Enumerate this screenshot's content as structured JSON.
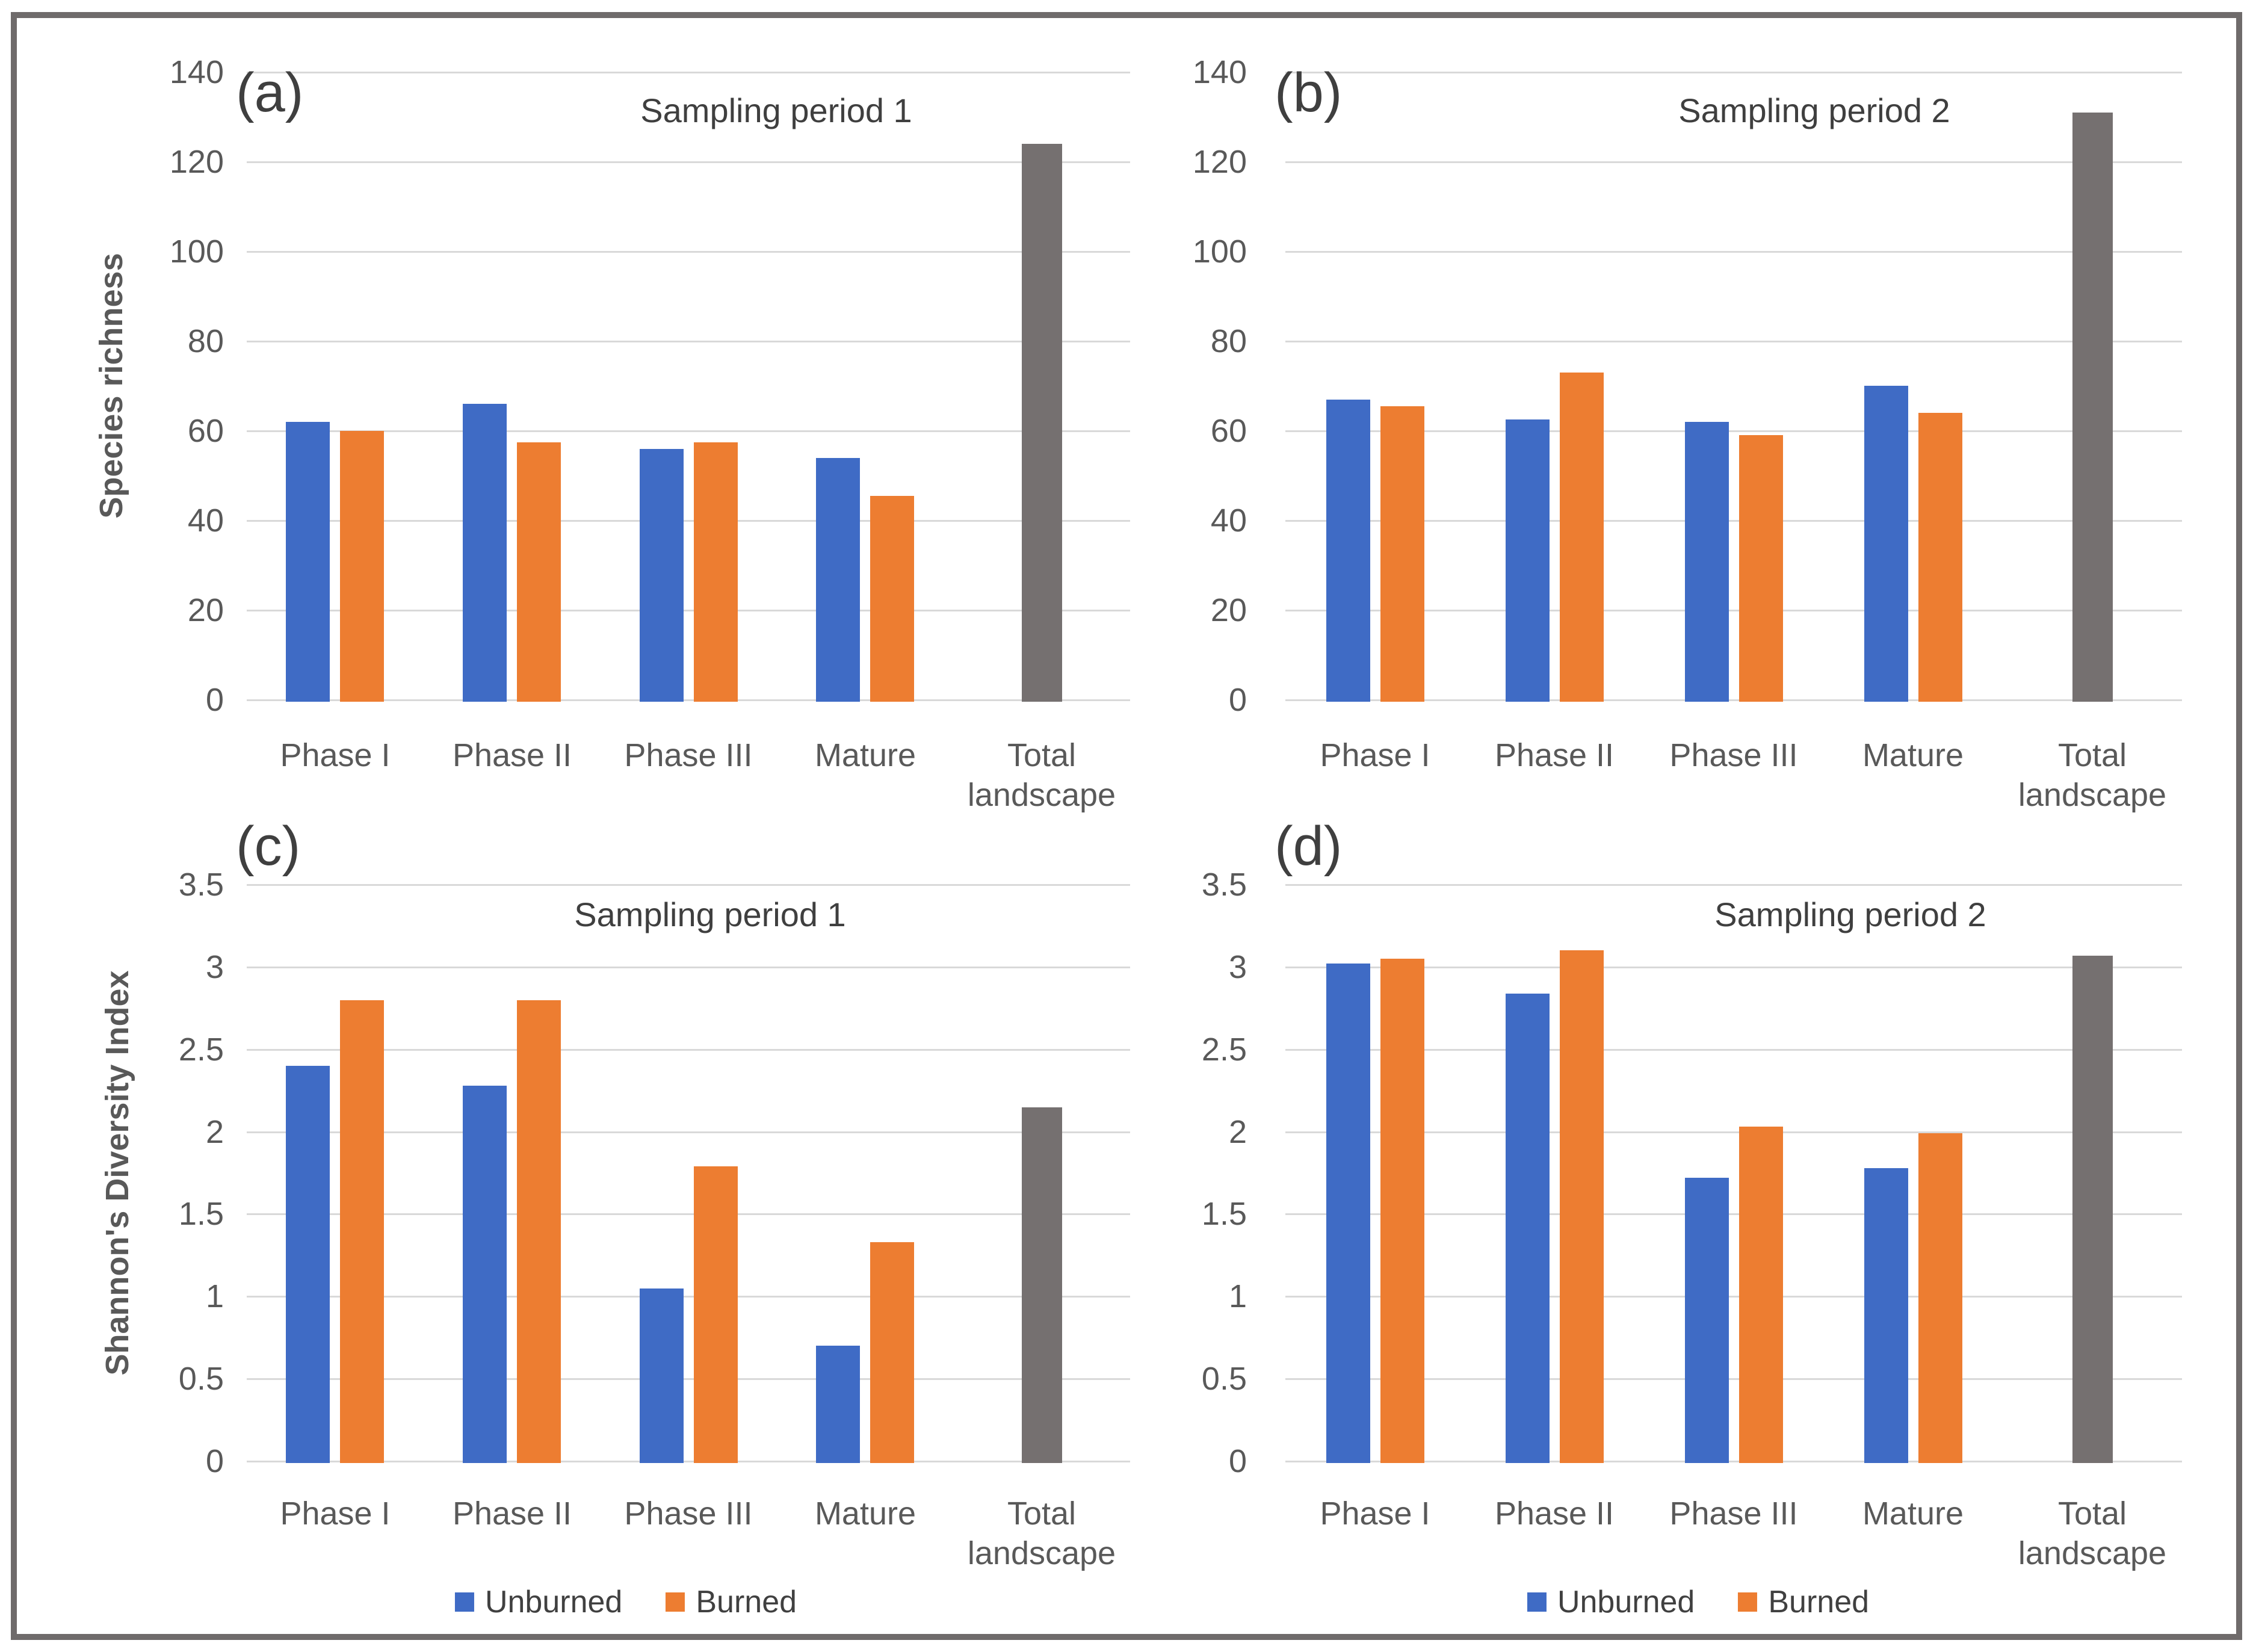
{
  "figure": {
    "colors": {
      "unburned": "#3F6BC5",
      "burned": "#ED7D31",
      "total_bar": "#757070",
      "gridline": "#D9D9D9",
      "axis_text": "#595959",
      "title_text": "#3F3F3F",
      "frame_border": "#6F6B6B"
    },
    "legend": {
      "items": [
        {
          "label": "Unburned",
          "color": "#3F6BC5"
        },
        {
          "label": "Burned",
          "color": "#ED7D31"
        }
      ]
    }
  },
  "chart_data": [
    {
      "type": "bar",
      "panel": "(a)",
      "title": "Sampling period 1",
      "xlabel": "",
      "ylabel": "Species richness",
      "ylim": [
        0,
        140
      ],
      "ytick_labels": [
        "0",
        "20",
        "40",
        "60",
        "80",
        "100",
        "120",
        "140"
      ],
      "categories": [
        "Phase I",
        "Phase II",
        "Phase III",
        "Mature",
        "Total landscape"
      ],
      "grid": "horizontal",
      "legend_visible": false,
      "legend_position": "none",
      "series": [
        {
          "name": "Unburned",
          "color": "#3F6BC5",
          "values": [
            62,
            66,
            56,
            54,
            null
          ]
        },
        {
          "name": "Burned",
          "color": "#ED7D31",
          "values": [
            60,
            57.5,
            57.5,
            45.5,
            null
          ]
        },
        {
          "name": "Total landscape",
          "color": "#757070",
          "values": [
            null,
            null,
            null,
            null,
            124
          ]
        }
      ]
    },
    {
      "type": "bar",
      "panel": "(b)",
      "title": "Sampling period 2",
      "xlabel": "",
      "ylabel": "",
      "ylim": [
        0,
        140
      ],
      "ytick_labels": [
        "0",
        "20",
        "40",
        "60",
        "80",
        "100",
        "120",
        "140"
      ],
      "categories": [
        "Phase I",
        "Phase II",
        "Phase III",
        "Mature",
        "Total landscape"
      ],
      "grid": "horizontal",
      "legend_visible": false,
      "legend_position": "none",
      "series": [
        {
          "name": "Unburned",
          "color": "#3F6BC5",
          "values": [
            67,
            62.5,
            62,
            70,
            null
          ]
        },
        {
          "name": "Burned",
          "color": "#ED7D31",
          "values": [
            65.5,
            73,
            59,
            64,
            null
          ]
        },
        {
          "name": "Total landscape",
          "color": "#757070",
          "values": [
            null,
            null,
            null,
            null,
            131
          ]
        }
      ]
    },
    {
      "type": "bar",
      "panel": "(c)",
      "title": "Sampling period 1",
      "xlabel": "",
      "ylabel": "Shannon's Diversity Index",
      "ylim": [
        0,
        3.5
      ],
      "ytick_labels": [
        "0",
        "0.5",
        "1",
        "1.5",
        "2",
        "2.5",
        "3",
        "3.5"
      ],
      "categories": [
        "Phase I",
        "Phase II",
        "Phase III",
        "Mature",
        "Total landscape"
      ],
      "grid": "horizontal",
      "legend_visible": true,
      "legend_position": "bottom",
      "series": [
        {
          "name": "Unburned",
          "color": "#3F6BC5",
          "values": [
            2.4,
            2.28,
            1.05,
            0.7,
            null
          ]
        },
        {
          "name": "Burned",
          "color": "#ED7D31",
          "values": [
            2.8,
            2.8,
            1.79,
            1.33,
            null
          ]
        },
        {
          "name": "Total landscape",
          "color": "#757070",
          "values": [
            null,
            null,
            null,
            null,
            2.15
          ]
        }
      ]
    },
    {
      "type": "bar",
      "panel": "(d)",
      "title": "Sampling period 2",
      "xlabel": "",
      "ylabel": "",
      "ylim": [
        0,
        3.5
      ],
      "ytick_labels": [
        "0",
        "0.5",
        "1",
        "1.5",
        "2",
        "2.5",
        "3",
        "3.5"
      ],
      "categories": [
        "Phase I",
        "Phase II",
        "Phase III",
        "Mature",
        "Total landscape"
      ],
      "grid": "horizontal",
      "legend_visible": true,
      "legend_position": "bottom",
      "series": [
        {
          "name": "Unburned",
          "color": "#3F6BC5",
          "values": [
            3.02,
            2.84,
            1.72,
            1.78,
            null
          ]
        },
        {
          "name": "Burned",
          "color": "#ED7D31",
          "values": [
            3.05,
            3.1,
            2.03,
            1.99,
            null
          ]
        },
        {
          "name": "Total landscape",
          "color": "#757070",
          "values": [
            null,
            null,
            null,
            null,
            3.07
          ]
        }
      ]
    }
  ]
}
